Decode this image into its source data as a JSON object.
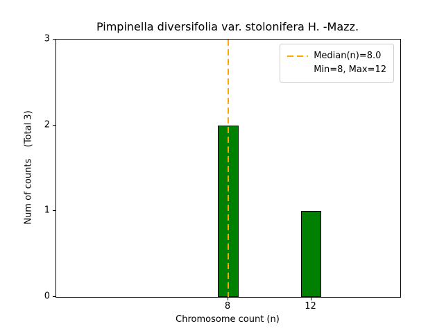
{
  "chart_data": {
    "type": "bar",
    "title": "Pimpinella diversifolia var. stolonifera H. -Mazz.",
    "xlabel": "Chromosome count (n)",
    "ylabel": "Num of counts    (Total 3)",
    "x": [
      8,
      12
    ],
    "values": [
      2,
      1
    ],
    "xticks": [
      8,
      12
    ],
    "yticks": [
      0,
      1,
      2,
      3
    ],
    "xlim": [
      -0.3,
      16.3
    ],
    "ylim": [
      0,
      3
    ],
    "bar_width": 1.0,
    "bar_color": "#008000",
    "bar_edge_color": "#000000",
    "grid": false,
    "median_line": {
      "x": 8.0,
      "color": "#FFA500",
      "style": "dashed"
    },
    "legend": {
      "position": "upper right",
      "items": [
        {
          "label": "Median(n)=8.0",
          "marker": "dashed-line",
          "color": "#FFA500"
        },
        {
          "label": "Min=8, Max=12",
          "marker": "none"
        }
      ]
    }
  }
}
